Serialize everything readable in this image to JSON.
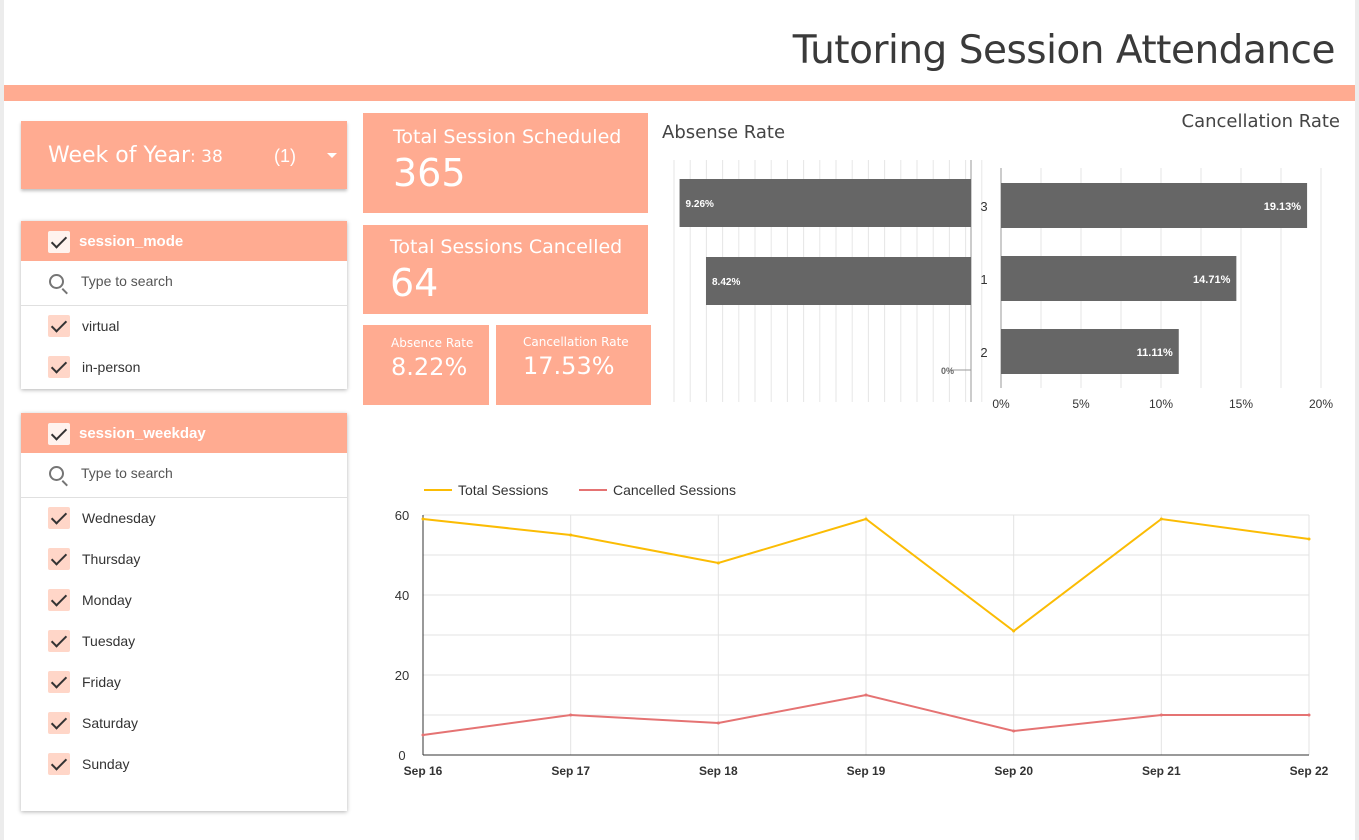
{
  "header": {
    "title": "Tutoring Session Attendance"
  },
  "colors": {
    "accent": "#ffab91",
    "bar": "#666666",
    "total_line": "#fbbc04",
    "cancelled_line": "#e57373"
  },
  "week_filter": {
    "label": "Week of Year",
    "value": ": 38",
    "count": "(1)",
    "icon": "chevron-down-icon"
  },
  "session_mode_filter": {
    "title": "session_mode",
    "search_placeholder": "Type to search",
    "items": [
      {
        "label": "virtual",
        "checked": true
      },
      {
        "label": "in-person",
        "checked": true
      }
    ]
  },
  "session_weekday_filter": {
    "title": "session_weekday",
    "search_placeholder": "Type to search",
    "items": [
      {
        "label": "Wednesday",
        "checked": true
      },
      {
        "label": "Thursday",
        "checked": true
      },
      {
        "label": "Monday",
        "checked": true
      },
      {
        "label": "Tuesday",
        "checked": true
      },
      {
        "label": "Friday",
        "checked": true
      },
      {
        "label": "Saturday",
        "checked": true
      },
      {
        "label": "Sunday",
        "checked": true
      }
    ]
  },
  "scorecards": {
    "scheduled": {
      "label": "Total Session Scheduled",
      "value": "365"
    },
    "cancelled": {
      "label": "Total Sessions Cancelled",
      "value": "64"
    },
    "absence": {
      "label": "Absence Rate",
      "value": "8.22%"
    },
    "cancellation": {
      "label": "Cancellation Rate",
      "value": "17.53%"
    }
  },
  "chart_data": [
    {
      "type": "bar",
      "orientation": "horizontal-reversed",
      "title": "Absense Rate",
      "categories": [
        "3",
        "1",
        "2"
      ],
      "values": [
        9.26,
        8.42,
        0
      ],
      "labels": [
        "9.26%",
        "8.42%",
        "0%"
      ],
      "xlim": [
        0,
        9.5
      ],
      "grid": true
    },
    {
      "type": "bar",
      "orientation": "horizontal",
      "title": "Cancellation Rate",
      "categories": [
        "3",
        "1",
        "2"
      ],
      "values": [
        19.13,
        14.71,
        11.11
      ],
      "labels": [
        "19.13%",
        "14.71%",
        "11.11%"
      ],
      "xlim": [
        0,
        20
      ],
      "ticks": [
        "0%",
        "5%",
        "10%",
        "15%",
        "20%"
      ],
      "tick_values": [
        0,
        5,
        10,
        15,
        20
      ],
      "grid": true
    },
    {
      "type": "line",
      "x": [
        "Sep 16",
        "Sep 17",
        "Sep 18",
        "Sep 19",
        "Sep 20",
        "Sep 21",
        "Sep 22"
      ],
      "series": [
        {
          "name": "Total Sessions",
          "values": [
            59,
            55,
            48,
            59,
            31,
            59,
            54
          ]
        },
        {
          "name": "Cancelled Sessions",
          "values": [
            5,
            10,
            8,
            15,
            6,
            10,
            10
          ]
        }
      ],
      "ylim": [
        0,
        60
      ],
      "yticks": [
        0,
        20,
        40,
        60
      ],
      "legend": "top-left",
      "grid": true
    }
  ]
}
